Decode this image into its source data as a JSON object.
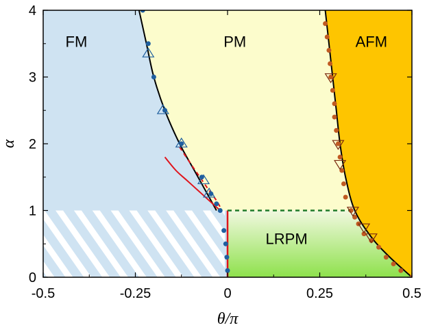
{
  "chart_data": {
    "type": "scatter",
    "title": "",
    "xlabel": "θ/π",
    "ylabel": "α",
    "xlim": [
      -0.5,
      0.5
    ],
    "ylim": [
      0,
      4
    ],
    "x_ticks": [
      -0.5,
      -0.25,
      0,
      0.25,
      0.5
    ],
    "x_tick_labels": [
      "-0.5",
      "-0.25",
      "0",
      "0.25",
      "0.5"
    ],
    "y_ticks": [
      0,
      1,
      2,
      3,
      4
    ],
    "y_tick_labels": [
      "0",
      "1",
      "2",
      "3",
      "4"
    ],
    "grid": false,
    "colors": {
      "fm_region": "#cfe3f2",
      "pm_region": "#fcfccc",
      "afm_region": "#fec500",
      "lrpm_top": "#f1f8e0",
      "lrpm_bottom": "#8ee14c",
      "blue_points": "#1f5f9f",
      "orange_points": "#c05a22",
      "red_line": "#e0141c",
      "green_dashed": "#1e7a2a"
    },
    "regions": [
      {
        "label": "FM",
        "x": -0.41,
        "y": 3.45
      },
      {
        "label": "PM",
        "x": 0.02,
        "y": 3.45
      },
      {
        "label": "AFM",
        "x": 0.39,
        "y": 3.45
      },
      {
        "label": "LRPM",
        "x": 0.16,
        "y": 0.5
      }
    ],
    "series": [
      {
        "kind": "boundary-curve",
        "points": [
          [
            -0.24,
            4.0
          ],
          [
            -0.22,
            3.5
          ],
          [
            -0.2,
            3.0
          ],
          [
            -0.17,
            2.5
          ],
          [
            -0.13,
            2.0
          ],
          [
            -0.09,
            1.6
          ],
          [
            -0.06,
            1.3
          ],
          [
            -0.04,
            1.1
          ],
          [
            -0.03,
            1.0
          ]
        ]
      },
      {
        "kind": "boundary-curve",
        "points": [
          [
            0.265,
            4.0
          ],
          [
            0.275,
            3.5
          ],
          [
            0.285,
            3.0
          ],
          [
            0.295,
            2.5
          ],
          [
            0.305,
            2.0
          ],
          [
            0.32,
            1.5
          ],
          [
            0.345,
            1.0
          ],
          [
            0.39,
            0.6
          ],
          [
            0.44,
            0.3
          ],
          [
            0.5,
            0.0
          ]
        ]
      },
      {
        "kind": "blue-dots",
        "points": [
          [
            -0.23,
            4.0
          ],
          [
            -0.215,
            3.5
          ],
          [
            -0.2,
            3.0
          ],
          [
            -0.17,
            2.5
          ],
          [
            -0.125,
            2.0
          ],
          [
            -0.07,
            1.5
          ],
          [
            -0.045,
            1.25
          ],
          [
            -0.03,
            1.1
          ],
          [
            -0.02,
            1.0
          ],
          [
            -0.01,
            0.7
          ],
          [
            -0.005,
            0.5
          ],
          [
            -0.002,
            0.3
          ],
          [
            0.0,
            0.1
          ]
        ]
      },
      {
        "kind": "up-triangles",
        "points": [
          [
            -0.215,
            3.35
          ],
          [
            -0.175,
            2.5
          ],
          [
            -0.125,
            2.0
          ],
          [
            -0.065,
            1.45
          ],
          [
            -0.05,
            1.25
          ]
        ]
      },
      {
        "kind": "orange-dots",
        "points": [
          [
            0.265,
            3.8
          ],
          [
            0.27,
            3.6
          ],
          [
            0.275,
            3.4
          ],
          [
            0.278,
            3.2
          ],
          [
            0.28,
            3.0
          ],
          [
            0.285,
            2.8
          ],
          [
            0.29,
            2.6
          ],
          [
            0.29,
            2.4
          ],
          [
            0.295,
            2.2
          ],
          [
            0.3,
            2.0
          ],
          [
            0.305,
            1.8
          ],
          [
            0.31,
            1.6
          ],
          [
            0.315,
            1.4
          ],
          [
            0.32,
            1.2
          ],
          [
            0.335,
            1.0
          ],
          [
            0.345,
            0.9
          ],
          [
            0.355,
            0.8
          ],
          [
            0.37,
            0.65
          ],
          [
            0.39,
            0.55
          ],
          [
            0.41,
            0.45
          ],
          [
            0.43,
            0.3
          ],
          [
            0.45,
            0.2
          ],
          [
            0.47,
            0.1
          ],
          [
            0.5,
            0.0
          ]
        ]
      },
      {
        "kind": "down-triangles",
        "points": [
          [
            0.28,
            3.0
          ],
          [
            0.3,
            2.0
          ],
          [
            0.305,
            1.7
          ],
          [
            0.34,
            1.0
          ],
          [
            0.37,
            0.75
          ],
          [
            0.39,
            0.6
          ]
        ]
      },
      {
        "kind": "red-solid",
        "points": [
          [
            -0.17,
            1.8
          ],
          [
            -0.14,
            1.6
          ],
          [
            -0.11,
            1.45
          ],
          [
            -0.08,
            1.3
          ],
          [
            -0.05,
            1.15
          ],
          [
            -0.03,
            1.05
          ],
          [
            -0.02,
            1.0
          ]
        ]
      },
      {
        "kind": "red-dashed",
        "points": [
          [
            -0.13,
            1.95
          ],
          [
            -0.1,
            1.7
          ],
          [
            -0.075,
            1.5
          ],
          [
            -0.05,
            1.3
          ],
          [
            -0.03,
            1.15
          ],
          [
            -0.02,
            1.05
          ]
        ]
      },
      {
        "kind": "red-vertical",
        "points": [
          [
            0.0,
            0.0
          ],
          [
            0.0,
            1.0
          ]
        ]
      },
      {
        "kind": "green-dashed",
        "points": [
          [
            0.0,
            1.0
          ],
          [
            0.345,
            1.0
          ]
        ]
      }
    ]
  }
}
